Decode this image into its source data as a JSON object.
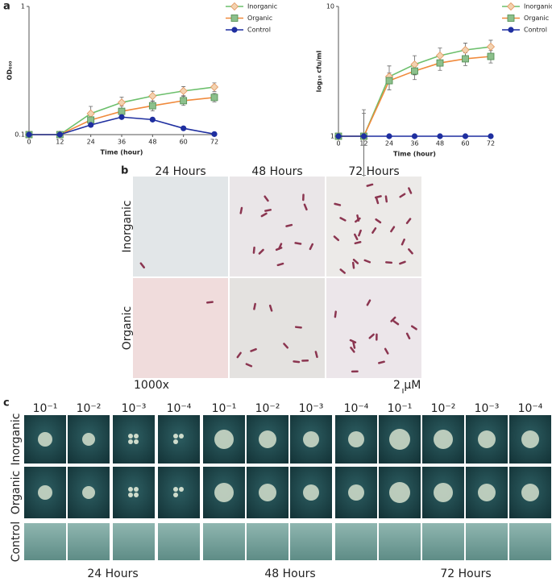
{
  "panel_labels": [
    "a",
    "b",
    "c"
  ],
  "chart_data": [
    {
      "type": "line",
      "log_y": true,
      "legend": "upper right",
      "xlabel": "Time (hour)",
      "ylabel": "OD₆₀₀",
      "x": [
        0,
        12,
        24,
        36,
        48,
        60,
        72
      ],
      "xlim": [
        0,
        72
      ],
      "xticks": [
        0,
        12,
        24,
        36,
        48,
        60,
        72
      ],
      "ylim": [
        0.1,
        1
      ],
      "yticks": [
        0.1,
        1
      ],
      "series": [
        {
          "name": "Inorganic",
          "color": "#6cbf6c",
          "marker": "diamond",
          "marker_color": "#f3d2b0",
          "marker_edge": "#e3935a",
          "values": [
            0.1,
            0.1,
            0.146,
            0.178,
            0.2,
            0.219,
            0.235
          ],
          "errors": [
            0,
            0.005,
            0.02,
            0.018,
            0.018,
            0.018,
            0.018
          ]
        },
        {
          "name": "Organic",
          "color": "#f08a3c",
          "marker": "square",
          "marker_color": "#8cc08c",
          "marker_edge": "#4d8a4d",
          "values": [
            0.1,
            0.1,
            0.13,
            0.152,
            0.168,
            0.184,
            0.195
          ],
          "errors": [
            0,
            0.004,
            0.015,
            0.015,
            0.015,
            0.015,
            0.015
          ]
        },
        {
          "name": "Control",
          "color": "#1f2fa0",
          "marker": "circle",
          "marker_color": "#1f2fa0",
          "marker_edge": "#1f2fa0",
          "values": [
            0.1,
            0.1,
            0.119,
            0.137,
            0.131,
            0.112,
            0.101
          ],
          "errors": [
            0,
            0,
            0,
            0,
            0,
            0,
            0
          ]
        }
      ]
    },
    {
      "type": "line",
      "log_y": true,
      "legend": "upper right",
      "xlabel": "Time (hour)",
      "ylabel": "log₁₀ cfu/ml",
      "x": [
        0,
        12,
        24,
        36,
        48,
        60,
        72
      ],
      "xlim": [
        0,
        72
      ],
      "xticks": [
        0,
        12,
        24,
        36,
        48,
        60,
        72
      ],
      "ylim": [
        1,
        10
      ],
      "yticks": [
        1,
        10
      ],
      "series": [
        {
          "name": "Inorganic",
          "color": "#6cbf6c",
          "marker": "diamond",
          "marker_color": "#f3d2b0",
          "marker_edge": "#e3935a",
          "values": [
            1,
            1,
            2.88,
            3.57,
            4.18,
            4.62,
            4.89
          ],
          "errors": [
            0,
            0.6,
            0.6,
            0.6,
            0.6,
            0.6,
            0.6
          ]
        },
        {
          "name": "Organic",
          "color": "#f08a3c",
          "marker": "square",
          "marker_color": "#8cc08c",
          "marker_edge": "#4d8a4d",
          "values": [
            1,
            1,
            2.68,
            3.18,
            3.67,
            3.95,
            4.12
          ],
          "errors": [
            0,
            0.5,
            0.4,
            0.45,
            0.45,
            0.45,
            0.45
          ]
        },
        {
          "name": "Control",
          "color": "#1f2fa0",
          "marker": "circle",
          "marker_color": "#1f2fa0",
          "marker_edge": "#1f2fa0",
          "values": [
            1,
            1,
            1,
            1,
            1,
            1,
            1
          ],
          "errors": [
            0,
            0,
            0,
            0,
            0,
            0,
            0
          ]
        }
      ]
    }
  ],
  "microscopy": {
    "columns": [
      "24 Hours",
      "48 Hours",
      "72 Hours"
    ],
    "rows": [
      "Inorganic",
      "Organic"
    ],
    "magnification": "1000x",
    "scale": "2 μM"
  },
  "plates": {
    "dilutions": [
      "10⁻¹",
      "10⁻²",
      "10⁻³",
      "10⁻⁴",
      "10⁻¹",
      "10⁻²",
      "10⁻³",
      "10⁻⁴",
      "10⁻¹",
      "10⁻²",
      "10⁻³",
      "10⁻⁴"
    ],
    "rows": [
      "Inorganic",
      "Organic",
      "Control"
    ],
    "times": [
      "24 Hours",
      "48 Hours",
      "72 Hours"
    ]
  }
}
